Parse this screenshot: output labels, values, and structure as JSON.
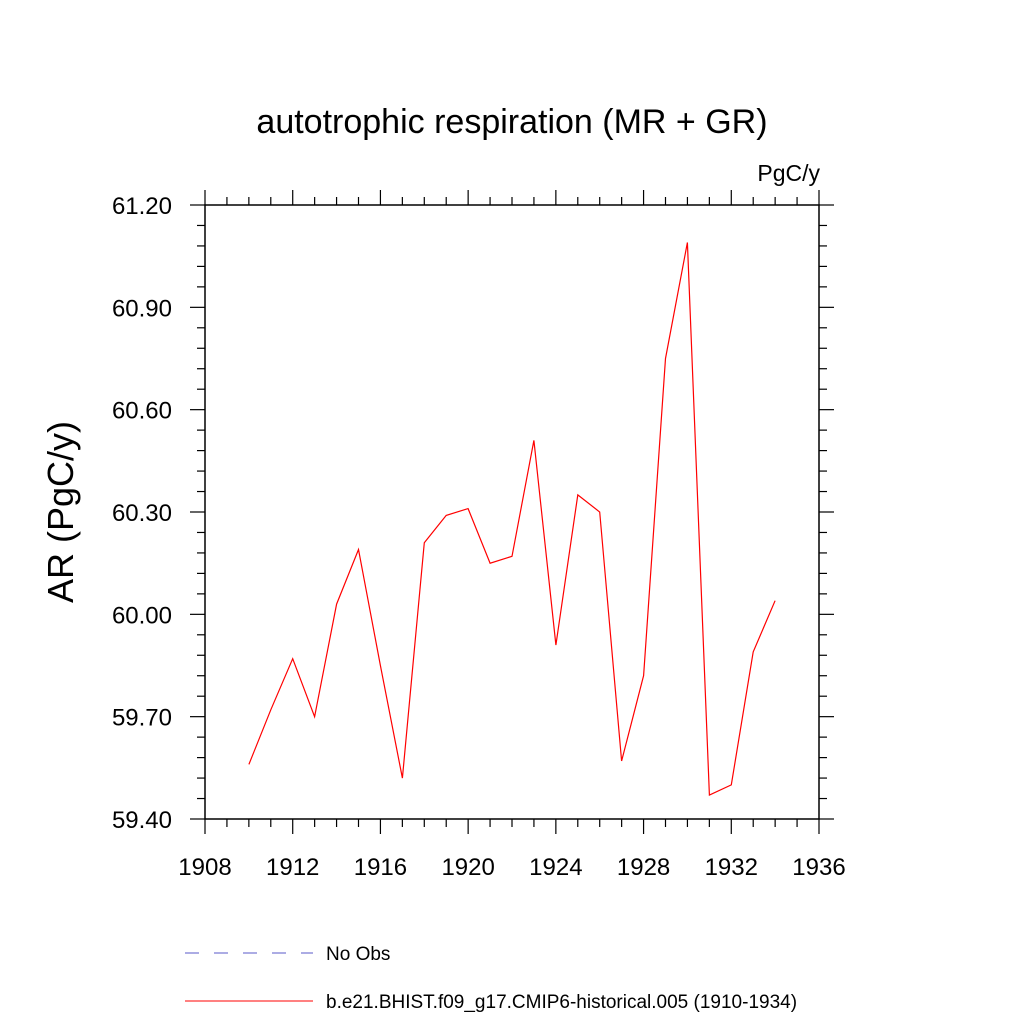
{
  "chart_data": {
    "type": "line",
    "title": "autotrophic respiration (MR + GR)",
    "units": "PgC/y",
    "ylabel": "AR  (PgC/y)",
    "xlabel": "",
    "xlim": [
      1908,
      1936
    ],
    "ylim": [
      59.4,
      61.2
    ],
    "x_ticks": [
      "1908",
      "1912",
      "1916",
      "1920",
      "1924",
      "1928",
      "1932",
      "1936"
    ],
    "y_ticks": [
      "59.40",
      "59.70",
      "60.00",
      "60.30",
      "60.60",
      "60.90",
      "61.20"
    ],
    "grid": false,
    "legend_position": "bottom",
    "series": [
      {
        "name": "b.e21.BHIST.f09_g17.CMIP6-historical.005 (1910-1934)",
        "color": "#ff0000",
        "x": [
          1910,
          1911,
          1912,
          1913,
          1914,
          1915,
          1916,
          1917,
          1918,
          1919,
          1920,
          1921,
          1922,
          1923,
          1924,
          1925,
          1926,
          1927,
          1928,
          1929,
          1930,
          1931,
          1932,
          1933,
          1934
        ],
        "y": [
          59.56,
          59.72,
          59.87,
          59.7,
          60.03,
          60.19,
          59.85,
          59.52,
          60.21,
          60.29,
          60.31,
          60.15,
          60.17,
          60.51,
          59.91,
          60.35,
          60.3,
          59.57,
          59.82,
          60.75,
          61.09,
          59.47,
          59.5,
          59.89,
          60.04
        ]
      }
    ],
    "legend": [
      {
        "label": "No Obs",
        "color": "#5a5ac8",
        "dash": true
      },
      {
        "label": "b.e21.BHIST.f09_g17.CMIP6-historical.005 (1910-1934)",
        "color": "#ff0000",
        "dash": false
      }
    ]
  }
}
